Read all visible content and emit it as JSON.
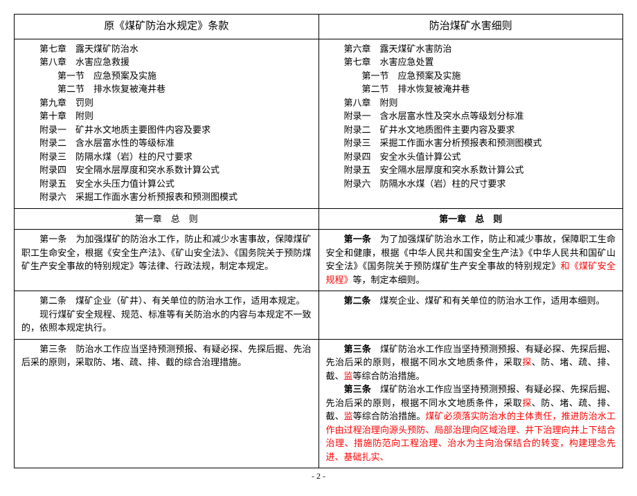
{
  "header": {
    "left_title": "原《煤矿防治水规定》条款",
    "right_title": "防治煤矿水害细则"
  },
  "toc_left": [
    {
      "indent": "line",
      "text": "第七章　露天煤矿防治水"
    },
    {
      "indent": "line",
      "text": "第八章　水害应急救援"
    },
    {
      "indent": "line-sub",
      "text": "第一节　应急预案及实施"
    },
    {
      "indent": "line-sub",
      "text": "第二节　排水恢复被淹井巷"
    },
    {
      "indent": "line",
      "text": "第九章　罚则"
    },
    {
      "indent": "line",
      "text": "第十章　附则"
    },
    {
      "indent": "line",
      "text": "附录一　矿井水文地质主要图件内容及要求"
    },
    {
      "indent": "line",
      "text": "附录二　含水层富水性的等级标准"
    },
    {
      "indent": "line",
      "text": "附录三　防隔水煤（岩）柱的尺寸要求"
    },
    {
      "indent": "line",
      "text": "附录四　安全隔水层厚度和突水系数计算公式"
    },
    {
      "indent": "line",
      "text": "附录五　安全水头压力值计算公式"
    },
    {
      "indent": "line",
      "text": "附录六　采掘工作面水害分析预报表和预测图模式"
    }
  ],
  "toc_right": [
    {
      "indent": "line",
      "text": "第六章　露天煤矿水害防治"
    },
    {
      "indent": "line",
      "text": "第七章　水害应急处置"
    },
    {
      "indent": "line-sub",
      "text": "第一节　应急预案及实施"
    },
    {
      "indent": "line-sub",
      "text": "第二节　排水恢复被淹井巷"
    },
    {
      "indent": "line",
      "text": "第八章　附则"
    },
    {
      "indent": "line",
      "text": "附录一　含水层富水性及突水点等级划分标准"
    },
    {
      "indent": "line",
      "text": "附录二　矿井水文地质图件主要内容及要求"
    },
    {
      "indent": "line",
      "text": "附录三　采掘工作面水害分析预报表和预测图模式"
    },
    {
      "indent": "line",
      "text": "附录四　安全水头值计算公式"
    },
    {
      "indent": "line",
      "text": "附录五　安全隔水层厚度和突水系数计算公式"
    },
    {
      "indent": "line",
      "text": "附录六　防隔水水煤（岩）柱的尺寸要求"
    }
  ],
  "chapter_left": "第一章　总　则",
  "chapter_right": "第一章　总　则",
  "row1_left": [
    {
      "t": "　　第一条　为加强煤矿的防治水工作，防止和减少水害事故，保障煤矿职工生命安全，根据《安全生产法》、《矿山安全法》、《国务院关于预防煤矿生产安全事故的特别规定》等法律、行政法规，制定本规定。"
    }
  ],
  "row1_right": [
    {
      "t": "　　",
      "bold": false
    },
    {
      "t": "第一条",
      "bold": true
    },
    {
      "t": "　为了加强煤矿防治水工作，防止和减少事故，保障职工生命安全和健康，根据《中华人民共和国安全生产法》《中华人民共和国矿山安全法》《国务院关于预防煤矿生产安全事故的特别规定》"
    },
    {
      "t": "和《煤矿安全规程》",
      "red": true
    },
    {
      "t": "等，制定本细则。"
    }
  ],
  "row2_left": [
    {
      "t": "　　第二条　煤矿企业（矿井）、有关单位的防治水工作，适用本规定。"
    },
    {
      "t": "\n　　现行煤矿安全规程、规范、标准等有关防治水的内容与本规定不一致的，依照本规定执行。"
    }
  ],
  "row2_right": [
    {
      "t": "　　",
      "bold": false
    },
    {
      "t": "第二条",
      "bold": true
    },
    {
      "t": "　煤炭企业、煤矿和有关单位的防治水工作，适用本细则。"
    }
  ],
  "row3_left": [
    {
      "t": "　　第三条　防治水工作应当坚持预测预报、有疑必探、先探后掘、先治后采的原则，采取防、堵、疏、排、截的综合治理措施。"
    }
  ],
  "row3_right": [
    {
      "t": "　　",
      "bold": false
    },
    {
      "t": "第三条",
      "bold": true
    },
    {
      "t": "　煤矿防治水工作应当坚持预测预报、有疑必探、先探后掘、先治后采的原则，根据不同水文地质条件，采取"
    },
    {
      "t": "探",
      "red": true
    },
    {
      "t": "、防、堵、疏、排、截、"
    },
    {
      "t": "监",
      "red": true
    },
    {
      "t": "等综合防治措施。"
    },
    {
      "t": "\n",
      "plain": true
    },
    {
      "t": "煤矿必须落实防治水的主体责任，推进防治水工作由过程治理向源头预防、局部治理向区域治理、井下治理向井上下结合治理、措施防范向工程治理、治水为主向治保结合的转变，构建理念先进、基础扎实、",
      "red": true
    }
  ],
  "footer": "- 2 -"
}
